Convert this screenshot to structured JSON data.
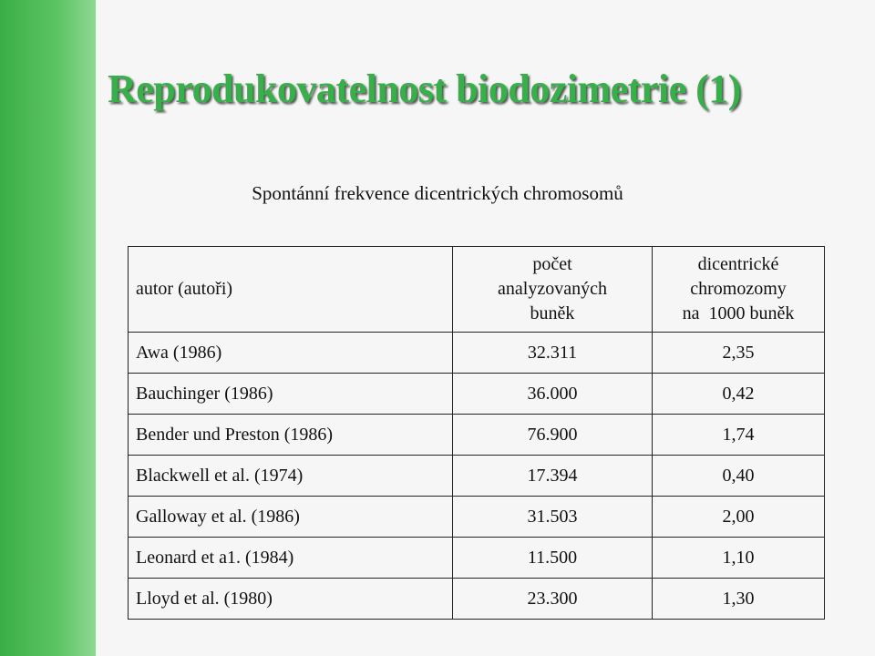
{
  "title": "Reprodukovatelnost biodozimetrie (1)",
  "subtitle": "Spontánní frekvence dicentrických chromosomů",
  "table": {
    "header": [
      [
        "autor (autoři)"
      ],
      [
        "počet",
        "analyzovaných",
        "buněk"
      ],
      [
        "dicentrické",
        "chromozomy",
        "na  1000 buněk"
      ]
    ],
    "rows": [
      [
        "Awa (1986)",
        "32.311",
        "2,35"
      ],
      [
        "Bauchinger (1986)",
        "36.000",
        "0,42"
      ],
      [
        "Bender und Preston (1986)",
        "76.900",
        "1,74"
      ],
      [
        "Blackwell et al. (1974)",
        "17.394",
        "0,40"
      ],
      [
        "Galloway et al. (1986)",
        "31.503",
        "2,00"
      ],
      [
        "Leonard et a1. (1984)",
        "11.500",
        "1,10"
      ],
      [
        "Lloyd et al. (1980)",
        "23.300",
        "1,30"
      ]
    ]
  }
}
